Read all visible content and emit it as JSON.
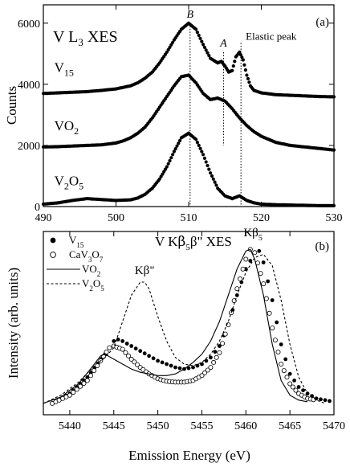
{
  "chart_data": [
    {
      "panel_label": "(a)",
      "type": "scatter",
      "title": "V L",
      "title_sub": "3",
      "title_tail": " XES",
      "ylabel": "Counts",
      "xlim": [
        490,
        530
      ],
      "ylim": [
        0,
        6600
      ],
      "x_ticks": [
        "490",
        "500",
        "510",
        "520",
        "530"
      ],
      "x_tick_values": [
        490,
        500,
        510,
        520,
        530
      ],
      "y_ticks": [
        "0",
        "2000",
        "4000",
        "6000"
      ],
      "y_tick_values": [
        0,
        2000,
        4000,
        6000
      ],
      "peak_marks": [
        {
          "label": "B",
          "x": 510.2,
          "y_top": 6000,
          "y_bottom": 0
        },
        {
          "label": "A",
          "x": 514.8,
          "y_top": 5050,
          "y_bottom": 2000
        }
      ],
      "elastic": {
        "label": "Elastic peak",
        "x": 517.2,
        "y_top": 5350,
        "y_bottom": 0
      },
      "series": [
        {
          "name": "V15",
          "label_base": "V",
          "label_sub": "15",
          "label_x": 491.5,
          "label_y": 4400,
          "points": [
            [
              490,
              3700
            ],
            [
              492,
              3720
            ],
            [
              494,
              3740
            ],
            [
              496,
              3760
            ],
            [
              498,
              3800
            ],
            [
              500,
              3850
            ],
            [
              501,
              3900
            ],
            [
              502,
              3950
            ],
            [
              503,
              4050
            ],
            [
              504,
              4200
            ],
            [
              505,
              4400
            ],
            [
              506,
              4700
            ],
            [
              507,
              5050
            ],
            [
              508,
              5450
            ],
            [
              509,
              5800
            ],
            [
              510,
              6000
            ],
            [
              511,
              5800
            ],
            [
              512,
              5300
            ],
            [
              513,
              4850
            ],
            [
              514,
              4700
            ],
            [
              514.5,
              4750
            ],
            [
              515,
              4600
            ],
            [
              515.5,
              4400
            ],
            [
              516,
              4450
            ],
            [
              516.5,
              4900
            ],
            [
              517,
              5050
            ],
            [
              517.5,
              4800
            ],
            [
              518,
              4300
            ],
            [
              518.5,
              3950
            ],
            [
              519,
              3800
            ],
            [
              520,
              3720
            ],
            [
              522,
              3660
            ],
            [
              524,
              3640
            ],
            [
              526,
              3620
            ],
            [
              528,
              3600
            ],
            [
              530,
              3590
            ]
          ]
        },
        {
          "name": "VO2",
          "label_base": "VO",
          "label_sub": "2",
          "label_x": 491.5,
          "label_y": 2500,
          "points": [
            [
              490,
              1950
            ],
            [
              492,
              1960
            ],
            [
              494,
              1980
            ],
            [
              496,
              2000
            ],
            [
              498,
              2020
            ],
            [
              500,
              2080
            ],
            [
              501,
              2150
            ],
            [
              502,
              2250
            ],
            [
              503,
              2400
            ],
            [
              504,
              2600
            ],
            [
              505,
              2900
            ],
            [
              506,
              3250
            ],
            [
              507,
              3600
            ],
            [
              508,
              3950
            ],
            [
              509,
              4250
            ],
            [
              510,
              4300
            ],
            [
              511,
              4050
            ],
            [
              512,
              3700
            ],
            [
              513,
              3500
            ],
            [
              514,
              3550
            ],
            [
              515,
              3450
            ],
            [
              516,
              3200
            ],
            [
              517,
              2900
            ],
            [
              518,
              2650
            ],
            [
              519,
              2450
            ],
            [
              520,
              2300
            ],
            [
              521,
              2200
            ],
            [
              522,
              2100
            ],
            [
              524,
              2000
            ],
            [
              526,
              1950
            ],
            [
              528,
              1900
            ],
            [
              530,
              1850
            ]
          ]
        },
        {
          "name": "V2O5",
          "label_base": "V",
          "label_sub": "2",
          "label_mid": "O",
          "label_sub2": "5",
          "label_x": 491.5,
          "label_y": 700,
          "points": [
            [
              490,
              80
            ],
            [
              492,
              120
            ],
            [
              494,
              200
            ],
            [
              496,
              260
            ],
            [
              498,
              230
            ],
            [
              500,
              200
            ],
            [
              502,
              220
            ],
            [
              503,
              280
            ],
            [
              504,
              400
            ],
            [
              505,
              600
            ],
            [
              506,
              900
            ],
            [
              507,
              1300
            ],
            [
              508,
              1800
            ],
            [
              509,
              2250
            ],
            [
              510,
              2400
            ],
            [
              511,
              2200
            ],
            [
              512,
              1700
            ],
            [
              513,
              1100
            ],
            [
              514,
              600
            ],
            [
              515,
              350
            ],
            [
              516,
              260
            ],
            [
              517,
              350
            ],
            [
              518,
              200
            ],
            [
              519,
              120
            ],
            [
              520,
              80
            ],
            [
              522,
              60
            ],
            [
              524,
              50
            ],
            [
              526,
              40
            ],
            [
              528,
              30
            ],
            [
              530,
              30
            ]
          ]
        }
      ]
    },
    {
      "panel_label": "(b)",
      "type": "line",
      "title": "V K",
      "title_greek": "β",
      "title_sub": "5",
      "title_tail": "β\" XES",
      "xlabel": "Emission Energy (eV)",
      "ylabel": "Intensity (arb. units)",
      "xlim": [
        5437,
        5470
      ],
      "ylim": [
        0,
        1.02
      ],
      "x_ticks": [
        "5440",
        "5445",
        "5450",
        "5455",
        "5460",
        "5465",
        "5470"
      ],
      "x_tick_values": [
        5440,
        5445,
        5450,
        5455,
        5460,
        5465,
        5470
      ],
      "annotations": [
        {
          "base": "Kβ",
          "sub": "5",
          "tail": "",
          "x": 5460.8,
          "y": 1.04
        },
        {
          "base": "Kβ",
          "sub": "",
          "tail": "\"",
          "x": 5448.5,
          "y": 0.81
        }
      ],
      "legend_position": "top-left",
      "series": [
        {
          "name": "V15",
          "label_base": "V",
          "label_sub": "15",
          "style": "filled",
          "points": [
            [
              5438,
              0.02
            ],
            [
              5440,
              0.08
            ],
            [
              5442,
              0.18
            ],
            [
              5444,
              0.32
            ],
            [
              5445,
              0.4
            ],
            [
              5445.5,
              0.41
            ],
            [
              5446,
              0.4
            ],
            [
              5447,
              0.37
            ],
            [
              5448,
              0.34
            ],
            [
              5449,
              0.31
            ],
            [
              5450,
              0.28
            ],
            [
              5451,
              0.26
            ],
            [
              5452,
              0.24
            ],
            [
              5453,
              0.23
            ],
            [
              5454,
              0.24
            ],
            [
              5455,
              0.26
            ],
            [
              5456,
              0.3
            ],
            [
              5457,
              0.37
            ],
            [
              5458,
              0.5
            ],
            [
              5459,
              0.68
            ],
            [
              5460,
              0.84
            ],
            [
              5461,
              0.94
            ],
            [
              5461.5,
              0.95
            ],
            [
              5462,
              0.88
            ],
            [
              5463,
              0.65
            ],
            [
              5464,
              0.38
            ],
            [
              5465,
              0.2
            ],
            [
              5466,
              0.12
            ],
            [
              5467,
              0.08
            ],
            [
              5468,
              0.05
            ],
            [
              5469,
              0.04
            ],
            [
              5470,
              0.03
            ]
          ]
        },
        {
          "name": "CaV3O7",
          "label_base": "CaV",
          "label_sub": "3",
          "label_mid": "O",
          "label_sub2": "7",
          "style": "open",
          "points": [
            [
              5438,
              0.02
            ],
            [
              5440,
              0.07
            ],
            [
              5442,
              0.16
            ],
            [
              5443.5,
              0.28
            ],
            [
              5444.5,
              0.36
            ],
            [
              5445,
              0.37
            ],
            [
              5446,
              0.35
            ],
            [
              5447,
              0.29
            ],
            [
              5448,
              0.24
            ],
            [
              5449,
              0.2
            ],
            [
              5450,
              0.17
            ],
            [
              5451,
              0.155
            ],
            [
              5452,
              0.15
            ],
            [
              5453,
              0.15
            ],
            [
              5454,
              0.16
            ],
            [
              5455,
              0.19
            ],
            [
              5456,
              0.24
            ],
            [
              5457,
              0.33
            ],
            [
              5458,
              0.5
            ],
            [
              5459,
              0.72
            ],
            [
              5460,
              0.9
            ],
            [
              5460.5,
              0.96
            ],
            [
              5461,
              0.94
            ],
            [
              5462,
              0.75
            ],
            [
              5463,
              0.48
            ],
            [
              5464,
              0.26
            ],
            [
              5465,
              0.14
            ],
            [
              5466,
              0.08
            ],
            [
              5467,
              0.05
            ],
            [
              5468,
              0.04
            ]
          ]
        },
        {
          "name": "VO2",
          "label_base": "VO",
          "label_sub": "2",
          "style": "solid",
          "points": [
            [
              5437,
              0.02
            ],
            [
              5439,
              0.06
            ],
            [
              5441,
              0.14
            ],
            [
              5442.5,
              0.24
            ],
            [
              5443.5,
              0.31
            ],
            [
              5444,
              0.32
            ],
            [
              5445,
              0.29
            ],
            [
              5446,
              0.26
            ],
            [
              5447,
              0.23
            ],
            [
              5448,
              0.21
            ],
            [
              5449,
              0.2
            ],
            [
              5450,
              0.19
            ],
            [
              5451,
              0.19
            ],
            [
              5452,
              0.2
            ],
            [
              5453,
              0.23
            ],
            [
              5454,
              0.27
            ],
            [
              5455,
              0.32
            ],
            [
              5456,
              0.4
            ],
            [
              5457,
              0.52
            ],
            [
              5458,
              0.68
            ],
            [
              5459,
              0.84
            ],
            [
              5460,
              0.95
            ],
            [
              5460.5,
              0.96
            ],
            [
              5461,
              0.9
            ],
            [
              5462,
              0.68
            ],
            [
              5463,
              0.38
            ],
            [
              5464,
              0.16
            ],
            [
              5465,
              0.07
            ],
            [
              5466,
              0.04
            ],
            [
              5467,
              0.03
            ]
          ]
        },
        {
          "name": "V2O5",
          "label_base": "V",
          "label_sub": "2",
          "label_mid": "O",
          "label_sub2": "5",
          "style": "dashed",
          "points": [
            [
              5437,
              0.02
            ],
            [
              5439,
              0.07
            ],
            [
              5441,
              0.15
            ],
            [
              5443,
              0.26
            ],
            [
              5444,
              0.3
            ],
            [
              5445,
              0.36
            ],
            [
              5446,
              0.52
            ],
            [
              5447,
              0.68
            ],
            [
              5448,
              0.76
            ],
            [
              5448.5,
              0.76
            ],
            [
              5449,
              0.72
            ],
            [
              5450,
              0.55
            ],
            [
              5451,
              0.4
            ],
            [
              5452,
              0.3
            ],
            [
              5453,
              0.26
            ],
            [
              5454,
              0.25
            ],
            [
              5455,
              0.27
            ],
            [
              5456,
              0.32
            ],
            [
              5457,
              0.4
            ],
            [
              5458,
              0.52
            ],
            [
              5459,
              0.68
            ],
            [
              5460,
              0.82
            ],
            [
              5461,
              0.91
            ],
            [
              5462,
              0.93
            ],
            [
              5463,
              0.86
            ],
            [
              5464,
              0.65
            ],
            [
              5465,
              0.38
            ],
            [
              5466,
              0.18
            ],
            [
              5467,
              0.08
            ],
            [
              5468,
              0.04
            ],
            [
              5469,
              0.02
            ]
          ]
        }
      ]
    }
  ]
}
